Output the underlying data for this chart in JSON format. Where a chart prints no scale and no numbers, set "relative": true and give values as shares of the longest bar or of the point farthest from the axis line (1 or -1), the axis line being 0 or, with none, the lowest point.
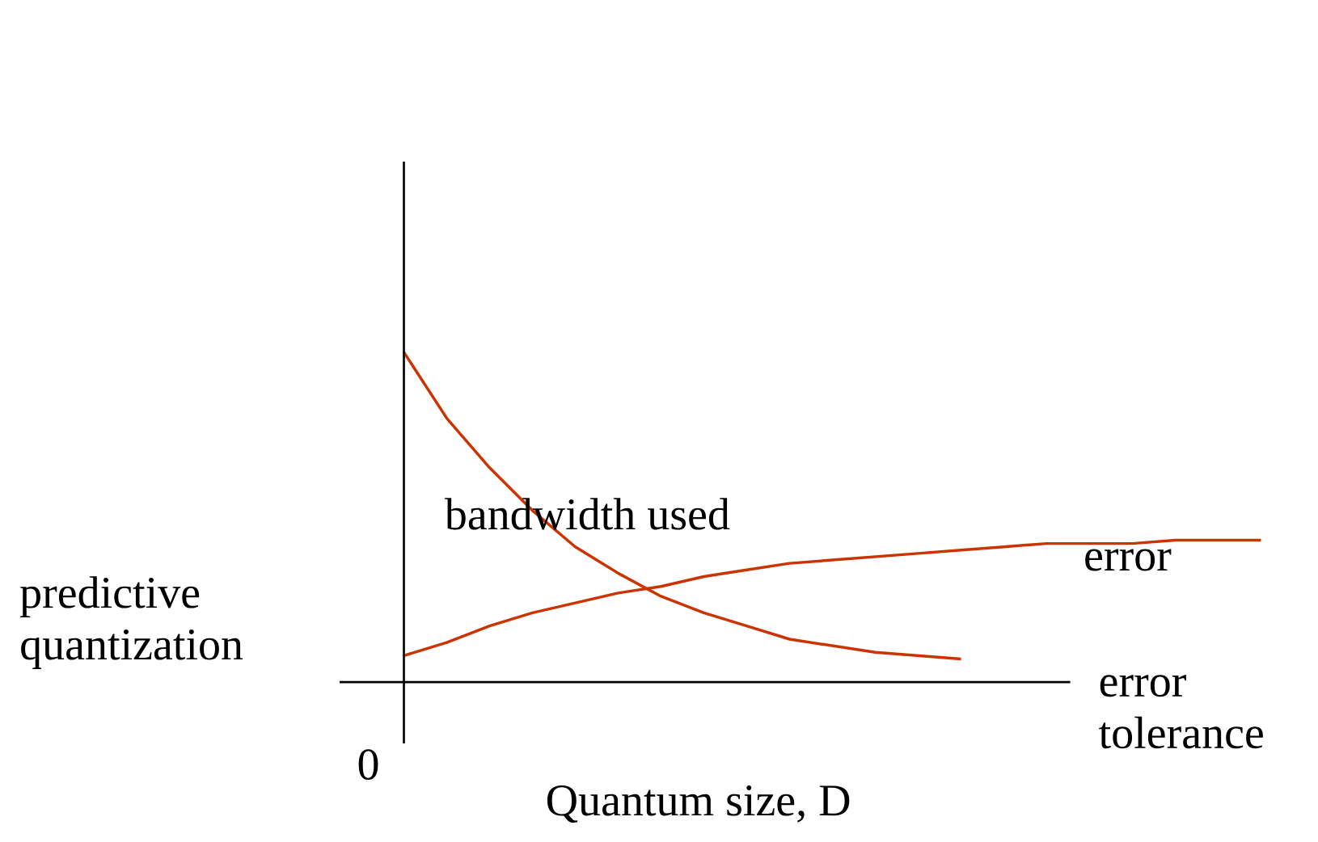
{
  "chart_data": {
    "type": "line",
    "relative": true,
    "xlabel": "Quantum size, D",
    "categories": [
      null,
      null,
      null,
      null,
      null,
      null,
      null,
      null,
      null,
      null,
      null,
      null,
      null,
      null,
      null,
      null,
      null,
      null,
      null,
      null,
      null
    ],
    "series": [
      {
        "name": "bandwidth used",
        "color": "#cc3300",
        "values": [
          1.0,
          0.8,
          0.65,
          0.52,
          0.41,
          0.33,
          0.26,
          0.21,
          0.17,
          0.13,
          0.11,
          0.09,
          0.08,
          0.07,
          null,
          null,
          null,
          null,
          null,
          null,
          null
        ]
      },
      {
        "name": "error",
        "color": "#cc3300",
        "values": [
          0.08,
          0.12,
          0.17,
          0.21,
          0.24,
          0.27,
          0.29,
          0.32,
          0.34,
          0.36,
          0.37,
          0.38,
          0.39,
          0.4,
          0.41,
          0.42,
          0.42,
          0.42,
          0.43,
          0.43,
          0.43
        ]
      }
    ],
    "annotations": [
      "predictive quantization",
      "0",
      "error tolerance"
    ],
    "marker": "none",
    "line_style": "solid"
  }
}
